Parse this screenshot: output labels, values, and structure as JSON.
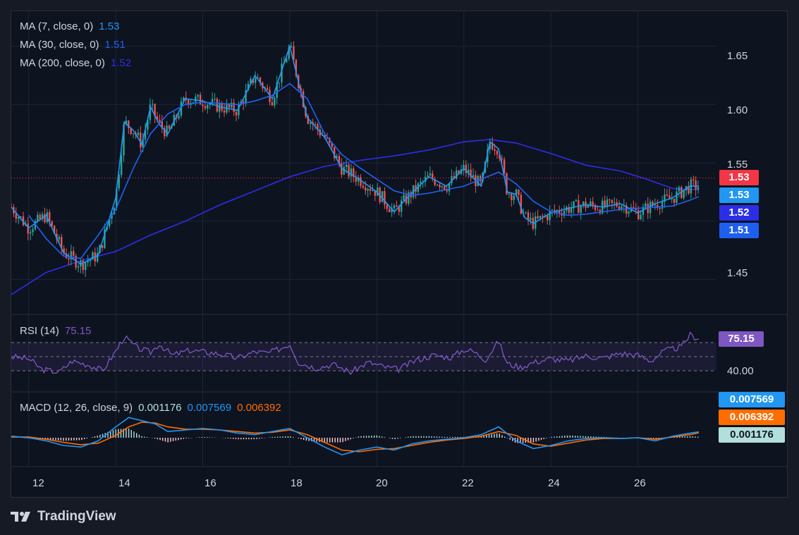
{
  "brand": {
    "name": "TradingView"
  },
  "colors": {
    "background": "#0e1320",
    "grid": "#1f2534",
    "candle_up": "#26a69a",
    "candle_down": "#ef5350",
    "ma7": "#2196f3",
    "ma30": "#1e63f0",
    "ma200": "#2c2ee6",
    "rsi": "#7e57c2",
    "macd_line": "#2196f3",
    "signal_line": "#ff6d00",
    "hist_up": "#b2dfdb",
    "hist_down": "#ffcdd2"
  },
  "legend": {
    "ma7": {
      "label": "MA (7, close, 0)",
      "value": "1.53"
    },
    "ma30": {
      "label": "MA (30, close, 0)",
      "value": "1.51"
    },
    "ma200": {
      "label": "MA (200, close, 0)",
      "value": "1.52"
    },
    "rsi": {
      "label": "RSI (14)",
      "value": "75.15"
    },
    "macd": {
      "label": "MACD (12, 26, close, 9)",
      "hist": "0.001176",
      "macd": "0.007569",
      "signal": "0.006392"
    }
  },
  "price_tags": {
    "last": "1.53",
    "ma7": "1.53",
    "ma200": "1.52",
    "ma30": "1.51"
  },
  "rsi_tags": {
    "current": "75.15",
    "level": "40.00"
  },
  "macd_tags": {
    "macd": "0.007569",
    "signal": "0.006392",
    "hist": "0.001176"
  },
  "chart_data": [
    {
      "type": "line",
      "panel": "price",
      "x_ticks": [
        "12",
        "14",
        "16",
        "18",
        "20",
        "22",
        "24",
        "26"
      ],
      "y_ticks": [
        "1.65",
        "1.60",
        "1.55",
        "1.45"
      ],
      "ylim": [
        1.42,
        1.68
      ],
      "last_price": 1.537,
      "series": [
        {
          "name": "MA (7, close, 0)",
          "x": [
            11.6,
            12.0,
            12.4,
            12.8,
            13.2,
            13.6,
            14.0,
            14.2,
            14.4,
            14.6,
            14.8,
            15.0,
            15.2,
            15.6,
            16.0,
            16.4,
            16.8,
            17.2,
            17.6,
            18.0,
            18.4,
            18.8,
            19.2,
            19.6,
            20.0,
            20.4,
            20.8,
            21.2,
            21.6,
            22.0,
            22.4,
            22.6,
            22.8,
            23.0,
            23.2,
            23.4,
            23.6,
            24.0,
            24.4,
            24.8,
            25.2,
            25.6,
            26.0,
            26.4,
            26.8,
            27.2,
            27.4
          ],
          "values": [
            1.512,
            1.494,
            1.505,
            1.473,
            1.463,
            1.471,
            1.52,
            1.585,
            1.578,
            1.566,
            1.598,
            1.583,
            1.575,
            1.605,
            1.603,
            1.598,
            1.595,
            1.625,
            1.605,
            1.65,
            1.589,
            1.572,
            1.545,
            1.536,
            1.525,
            1.508,
            1.524,
            1.538,
            1.53,
            1.545,
            1.53,
            1.568,
            1.562,
            1.525,
            1.523,
            1.503,
            1.498,
            1.507,
            1.511,
            1.514,
            1.512,
            1.515,
            1.507,
            1.515,
            1.52,
            1.53,
            1.53
          ]
        },
        {
          "name": "MA (30, close, 0)",
          "x": [
            12.0,
            12.4,
            12.8,
            13.2,
            13.6,
            14.0,
            14.4,
            14.8,
            15.2,
            15.6,
            16.0,
            16.4,
            16.8,
            17.2,
            17.6,
            18.0,
            18.4,
            18.8,
            19.2,
            19.6,
            20.0,
            20.4,
            20.8,
            21.2,
            21.6,
            22.0,
            22.4,
            22.8,
            23.2,
            23.6,
            24.0,
            24.4,
            24.8,
            25.2,
            25.6,
            26.0,
            26.4,
            26.8,
            27.2,
            27.4
          ],
          "values": [
            1.505,
            1.485,
            1.47,
            1.468,
            1.488,
            1.51,
            1.545,
            1.575,
            1.592,
            1.6,
            1.602,
            1.601,
            1.6,
            1.603,
            1.608,
            1.618,
            1.605,
            1.575,
            1.557,
            1.546,
            1.536,
            1.526,
            1.522,
            1.524,
            1.527,
            1.53,
            1.536,
            1.542,
            1.532,
            1.517,
            1.508,
            1.505,
            1.506,
            1.508,
            1.51,
            1.511,
            1.512,
            1.513,
            1.518,
            1.521
          ]
        },
        {
          "name": "MA (200, close, 0)",
          "x": [
            11.6,
            12.4,
            13.2,
            14.0,
            14.8,
            15.6,
            16.4,
            17.2,
            18.0,
            18.8,
            19.6,
            20.4,
            21.2,
            22.0,
            22.6,
            23.2,
            24.0,
            24.8,
            25.6,
            26.2,
            26.8,
            27.2,
            27.4
          ],
          "values": [
            1.437,
            1.456,
            1.466,
            1.474,
            1.488,
            1.5,
            1.514,
            1.526,
            1.538,
            1.547,
            1.552,
            1.556,
            1.561,
            1.568,
            1.57,
            1.567,
            1.558,
            1.548,
            1.543,
            1.536,
            1.528,
            1.527,
            1.527
          ]
        }
      ]
    },
    {
      "type": "line",
      "panel": "rsi",
      "ylim": [
        0,
        100
      ],
      "levels": [
        30,
        50,
        70
      ],
      "series": [
        {
          "name": "RSI (14)",
          "x": [
            11.6,
            12.0,
            12.3,
            12.7,
            13.0,
            13.4,
            13.7,
            14.0,
            14.2,
            14.5,
            14.8,
            15.0,
            15.3,
            15.7,
            16.0,
            16.4,
            16.8,
            17.2,
            17.5,
            17.8,
            18.0,
            18.2,
            18.6,
            19.0,
            19.4,
            19.8,
            20.2,
            20.5,
            20.9,
            21.3,
            21.7,
            22.0,
            22.2,
            22.5,
            22.8,
            23.0,
            23.3,
            23.6,
            24.0,
            24.4,
            24.8,
            25.2,
            25.6,
            26.0,
            26.3,
            26.6,
            27.0,
            27.2,
            27.4
          ],
          "values": [
            50,
            47,
            32,
            28,
            44,
            38,
            30,
            58,
            78,
            62,
            56,
            68,
            52,
            59,
            57,
            54,
            48,
            57,
            55,
            62,
            68,
            42,
            34,
            39,
            28,
            42,
            35,
            32,
            45,
            52,
            49,
            60,
            58,
            46,
            72,
            40,
            35,
            42,
            47,
            44,
            51,
            48,
            55,
            52,
            44,
            58,
            64,
            81,
            75.15
          ]
        }
      ]
    },
    {
      "type": "line",
      "panel": "macd",
      "series": [
        {
          "name": "MACD",
          "x": [
            11.6,
            12.0,
            12.4,
            12.8,
            13.2,
            13.6,
            14.0,
            14.3,
            14.6,
            14.9,
            15.2,
            15.6,
            16.0,
            16.4,
            16.8,
            17.2,
            17.6,
            18.0,
            18.4,
            18.8,
            19.2,
            19.6,
            20.0,
            20.4,
            20.8,
            21.2,
            21.6,
            22.0,
            22.4,
            22.8,
            23.2,
            23.6,
            24.0,
            24.4,
            24.8,
            25.2,
            25.6,
            26.0,
            26.4,
            26.8,
            27.2,
            27.4
          ],
          "values": [
            0.002,
            0.0,
            -0.004,
            -0.01,
            -0.012,
            -0.004,
            0.014,
            0.026,
            0.022,
            0.018,
            0.008,
            0.01,
            0.012,
            0.01,
            0.006,
            0.004,
            0.008,
            0.012,
            0.0,
            -0.012,
            -0.022,
            -0.016,
            -0.012,
            -0.016,
            -0.008,
            -0.004,
            -0.002,
            0.0,
            0.004,
            0.014,
            -0.004,
            -0.014,
            -0.01,
            -0.004,
            -0.001,
            0.0,
            -0.001,
            0.0,
            -0.004,
            0.002,
            0.006,
            0.007569
          ]
        },
        {
          "name": "Signal",
          "x": [
            11.6,
            12.0,
            12.4,
            12.8,
            13.2,
            13.6,
            14.0,
            14.3,
            14.6,
            14.9,
            15.2,
            15.6,
            16.0,
            16.4,
            16.8,
            17.2,
            17.6,
            18.0,
            18.4,
            18.8,
            19.2,
            19.6,
            20.0,
            20.4,
            20.8,
            21.2,
            21.6,
            22.0,
            22.4,
            22.8,
            23.2,
            23.6,
            24.0,
            24.4,
            24.8,
            25.2,
            25.6,
            26.0,
            26.4,
            26.8,
            27.2,
            27.4
          ],
          "values": [
            0.001,
            0.001,
            -0.002,
            -0.006,
            -0.009,
            -0.007,
            0.003,
            0.014,
            0.02,
            0.019,
            0.014,
            0.011,
            0.011,
            0.01,
            0.008,
            0.006,
            0.007,
            0.01,
            0.004,
            -0.006,
            -0.016,
            -0.018,
            -0.015,
            -0.014,
            -0.01,
            -0.006,
            -0.003,
            -0.001,
            0.002,
            0.008,
            0.003,
            -0.008,
            -0.011,
            -0.007,
            -0.003,
            -0.001,
            -0.001,
            0.0,
            -0.002,
            0.001,
            0.004,
            0.006392
          ]
        }
      ]
    }
  ]
}
